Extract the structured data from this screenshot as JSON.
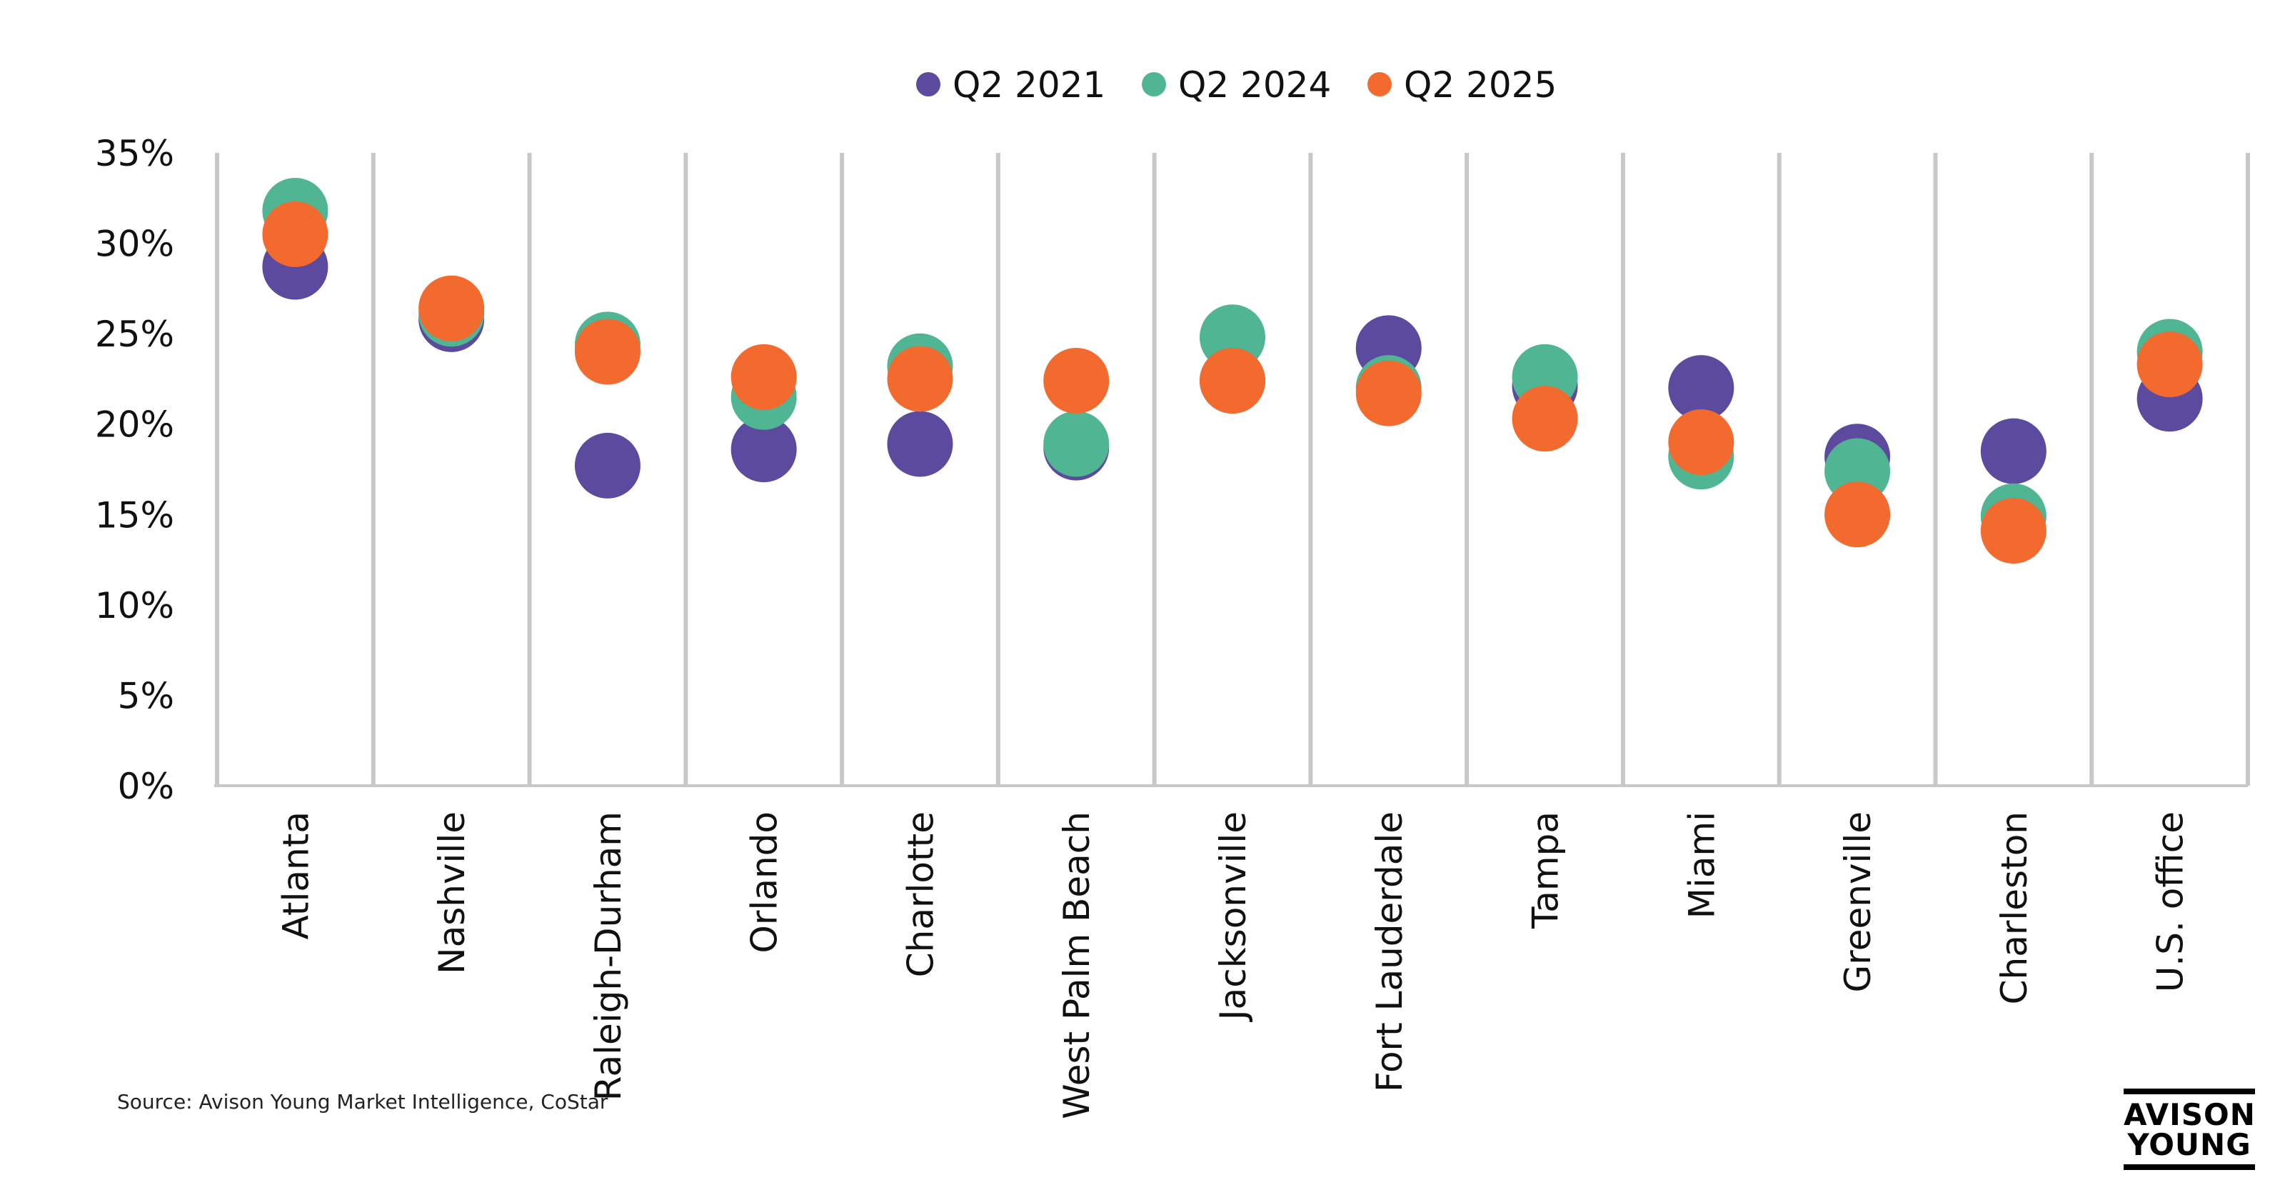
{
  "chart_data": {
    "type": "scatter",
    "categories": [
      "Atlanta",
      "Nashville",
      "Raleigh-Durham",
      "Orlando",
      "Charlotte",
      "West Palm Beach",
      "Jacksonville",
      "Fort Lauderdale",
      "Tampa",
      "Miami",
      "Greenville",
      "Charleston",
      "U.S. office"
    ],
    "series": [
      {
        "name": "Q2 2021",
        "color": "#5b4a9e",
        "values": [
          28.7,
          25.8,
          17.7,
          18.6,
          18.9,
          18.7,
          22.4,
          24.2,
          22.1,
          22.0,
          18.2,
          18.5,
          21.4
        ]
      },
      {
        "name": "Q2 2024",
        "color": "#4fb593",
        "values": [
          31.8,
          26.1,
          24.4,
          21.5,
          23.2,
          18.9,
          24.8,
          22.0,
          22.6,
          18.2,
          17.4,
          14.9,
          24.0
        ]
      },
      {
        "name": "Q2 2025",
        "color": "#f26a2e",
        "values": [
          30.5,
          26.4,
          24.0,
          22.6,
          22.5,
          22.4,
          22.4,
          21.7,
          20.3,
          19.0,
          15.0,
          14.1,
          23.3
        ]
      }
    ],
    "yticks": [
      "0%",
      "5%",
      "10%",
      "15%",
      "20%",
      "25%",
      "30%",
      "35%"
    ],
    "ylim": [
      0,
      35
    ],
    "legend_position": "top-center",
    "grid": "vertical category separators"
  },
  "source_note": "Source: Avison Young Market Intelligence, CoStar",
  "logo": {
    "line1": "AVISON",
    "line2": "YOUNG"
  }
}
